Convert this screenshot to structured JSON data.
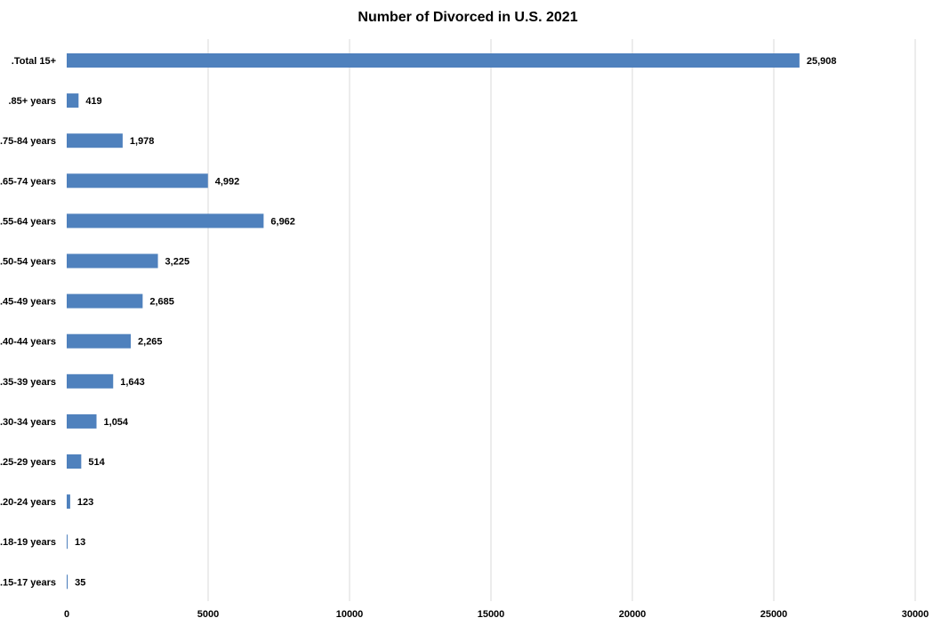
{
  "chart_data": {
    "type": "bar",
    "orientation": "horizontal",
    "title": "Number of Divorced in U.S. 2021",
    "xlabel": "",
    "ylabel": "",
    "categories": [
      ".Total 15+",
      ".85+ years",
      ".75-84 years",
      ".65-74 years",
      ".55-64 years",
      ".50-54 years",
      ".45-49 years",
      ".40-44 years",
      ".35-39 years",
      ".30-34 years",
      ".25-29 years",
      ".20-24 years",
      ".18-19 years",
      ".15-17 years"
    ],
    "values": [
      25908,
      419,
      1978,
      4992,
      6962,
      3225,
      2685,
      2265,
      1643,
      1054,
      514,
      123,
      13,
      35
    ],
    "value_labels": [
      "25,908",
      "419",
      "1,978",
      "4,992",
      "6,962",
      "3,225",
      "2,685",
      "2,265",
      "1,643",
      "1,054",
      "514",
      "123",
      "13",
      "35"
    ],
    "xlim": [
      0,
      30000
    ],
    "xticks": [
      0,
      5000,
      10000,
      15000,
      20000,
      25000,
      30000
    ],
    "xtick_labels": [
      "0",
      "5000",
      "10000",
      "15000",
      "20000",
      "25000",
      "30000"
    ],
    "grid": "vertical",
    "legend": "none",
    "bar_color": "#4F81BD",
    "grid_color": "#D9D9D9"
  }
}
